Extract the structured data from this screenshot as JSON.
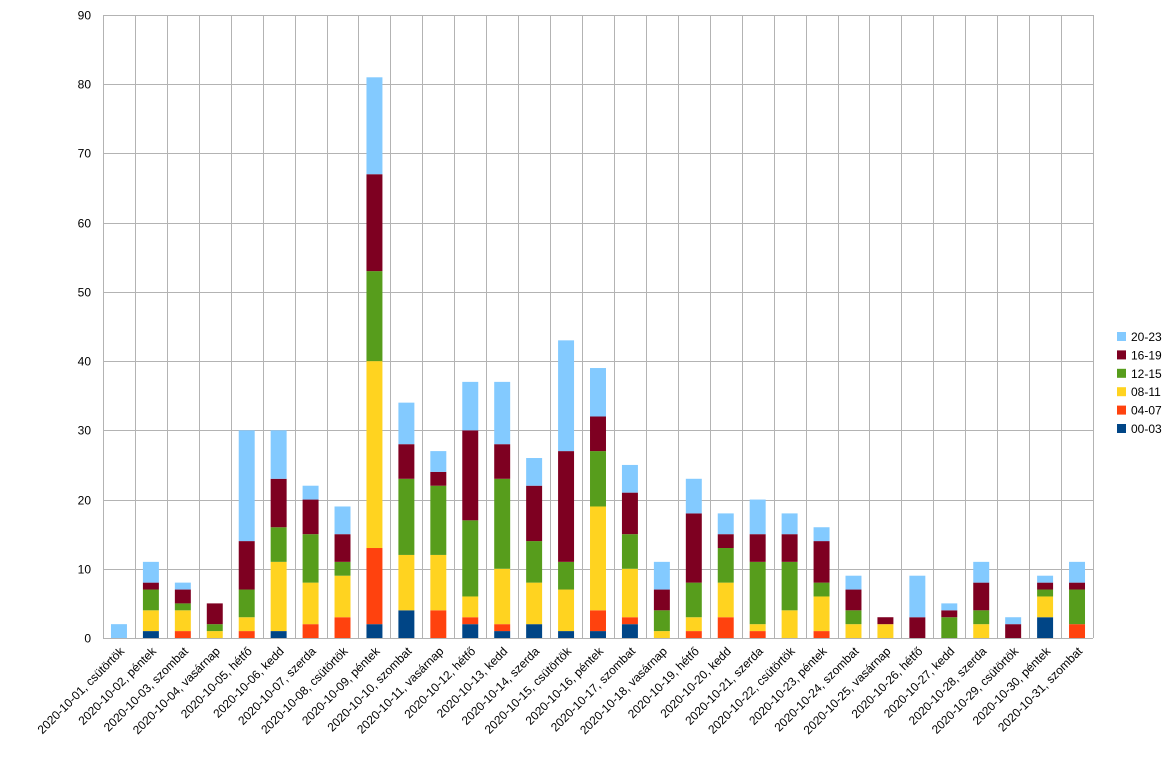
{
  "chart_data": {
    "type": "bar",
    "stacked": true,
    "grid": true,
    "legend_position": "right",
    "ylim": [
      0,
      90
    ],
    "yticks": [
      0,
      10,
      20,
      30,
      40,
      50,
      60,
      70,
      80,
      90
    ],
    "categories": [
      "2020-10-01, csütörtök",
      "2020-10-02, péntek",
      "2020-10-03, szombat",
      "2020-10-04, vasárnap",
      "2020-10-05, hétfő",
      "2020-10-06, kedd",
      "2020-10-07, szerda",
      "2020-10-08, csütörtök",
      "2020-10-09, péntek",
      "2020-10-10, szombat",
      "2020-10-11, vasárnap",
      "2020-10-12, hétfő",
      "2020-10-13, kedd",
      "2020-10-14, szerda",
      "2020-10-15, csütörtök",
      "2020-10-16, péntek",
      "2020-10-17, szombat",
      "2020-10-18, vasárnap",
      "2020-10-19, hétfő",
      "2020-10-20, kedd",
      "2020-10-21, szerda",
      "2020-10-22, csütörtök",
      "2020-10-23, péntek",
      "2020-10-24, szombat",
      "2020-10-25, vasárnap",
      "2020-10-26, hétfő",
      "2020-10-27, kedd",
      "2020-10-28, szerda",
      "2020-10-29, csütörtök",
      "2020-10-30, péntek",
      "2020-10-31, szombat"
    ],
    "series": [
      {
        "name": "00-03",
        "color": "#004586",
        "values": [
          0,
          1,
          0,
          0,
          0,
          1,
          0,
          0,
          2,
          4,
          0,
          2,
          1,
          2,
          1,
          1,
          2,
          0,
          0,
          0,
          0,
          0,
          0,
          0,
          0,
          0,
          0,
          0,
          0,
          3,
          0
        ]
      },
      {
        "name": "04-07",
        "color": "#ff420e",
        "values": [
          0,
          0,
          1,
          0,
          1,
          0,
          2,
          3,
          11,
          0,
          4,
          1,
          1,
          0,
          0,
          3,
          1,
          0,
          1,
          3,
          1,
          0,
          1,
          0,
          0,
          0,
          0,
          0,
          0,
          0,
          2
        ]
      },
      {
        "name": "08-11",
        "color": "#ffd320",
        "values": [
          0,
          3,
          3,
          1,
          2,
          10,
          6,
          6,
          27,
          8,
          8,
          3,
          8,
          6,
          6,
          15,
          7,
          1,
          2,
          5,
          1,
          4,
          5,
          2,
          2,
          0,
          0,
          2,
          0,
          3,
          0
        ]
      },
      {
        "name": "12-15",
        "color": "#579d1c",
        "values": [
          0,
          3,
          1,
          1,
          4,
          5,
          7,
          2,
          13,
          11,
          10,
          11,
          13,
          6,
          4,
          8,
          5,
          3,
          5,
          5,
          9,
          7,
          2,
          2,
          0,
          0,
          3,
          2,
          0,
          1,
          5
        ]
      },
      {
        "name": "16-19",
        "color": "#7e0021",
        "values": [
          0,
          1,
          2,
          3,
          7,
          7,
          5,
          4,
          14,
          5,
          2,
          13,
          5,
          8,
          16,
          5,
          6,
          3,
          10,
          2,
          4,
          4,
          6,
          3,
          1,
          3,
          1,
          4,
          2,
          1,
          1
        ]
      },
      {
        "name": "20-23",
        "color": "#83caff",
        "values": [
          2,
          3,
          1,
          0,
          16,
          7,
          2,
          4,
          14,
          6,
          3,
          7,
          9,
          4,
          16,
          7,
          4,
          4,
          5,
          3,
          5,
          3,
          2,
          2,
          0,
          6,
          1,
          3,
          1,
          1,
          3
        ]
      }
    ]
  }
}
